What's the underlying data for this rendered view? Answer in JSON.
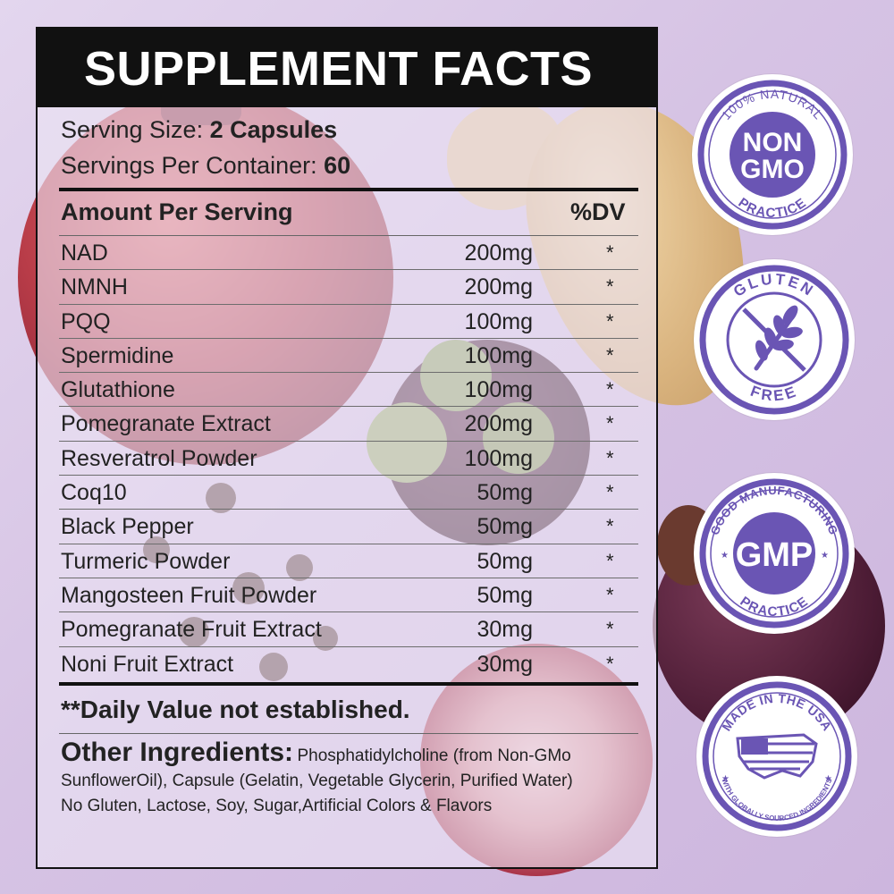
{
  "title": "SUPPLEMENT FACTS",
  "serving": {
    "size_label": "Serving Size:",
    "size_value": "2 Capsules",
    "per_container_label": "Servings Per Container:",
    "per_container_value": "60"
  },
  "table": {
    "amount_header": "Amount Per Serving",
    "dv_header": "%DV",
    "rows": [
      {
        "name": "NAD",
        "amount": "200mg",
        "dv": "*"
      },
      {
        "name": "NMNH",
        "amount": "200mg",
        "dv": "*"
      },
      {
        "name": "PQQ",
        "amount": "100mg",
        "dv": "*"
      },
      {
        "name": "Spermidine",
        "amount": "100mg",
        "dv": "*"
      },
      {
        "name": "Glutathione",
        "amount": "100mg",
        "dv": "*"
      },
      {
        "name": "Pomegranate Extract",
        "amount": "200mg",
        "dv": "*"
      },
      {
        "name": "Resveratrol Powder",
        "amount": "100mg",
        "dv": "*"
      },
      {
        "name": "Coq10",
        "amount": "50mg",
        "dv": "*"
      },
      {
        "name": "Black Pepper",
        "amount": "50mg",
        "dv": "*"
      },
      {
        "name": "Turmeric Powder",
        "amount": "50mg",
        "dv": "*"
      },
      {
        "name": "Mangosteen Fruit Powder",
        "amount": "50mg",
        "dv": "*"
      },
      {
        "name": "Pomegranate Fruit Extract",
        "amount": "30mg",
        "dv": "*"
      },
      {
        "name": "Noni Fruit Extract",
        "amount": "30mg",
        "dv": "*"
      }
    ]
  },
  "dv_note": "**Daily Value not established.",
  "other_ingredients": {
    "label": "Other Ingredients:",
    "text": "Phosphatidylcholine (from Non-GMo SunflowerOil), Capsule (Gelatin, Vegetable Glycerin, Purified Water)",
    "free_from": "No Gluten, Lactose, Soy, Sugar,Artificial Colors & Flavors"
  },
  "badges": [
    {
      "icon": "non-gmo-seal-icon",
      "top_text": "100% NATURAL",
      "main_line1": "NON",
      "main_line2": "GMO",
      "bottom_text": "PRACTICE"
    },
    {
      "icon": "gluten-free-seal-icon",
      "top_text": "GLUTEN",
      "bottom_text": "FREE"
    },
    {
      "icon": "gmp-seal-icon",
      "top_text": "GOOD MANUFACTURING",
      "main_line1": "GMP",
      "bottom_text": "PRACTICE"
    },
    {
      "icon": "made-in-usa-seal-icon",
      "top_text": "MADE IN THE USA",
      "bottom_text": "WITH GLOBALLY SOURCED INGREDIENTS"
    }
  ],
  "colors": {
    "badge_purple": "#6a55b4",
    "header_black": "#111111",
    "background_lilac": "#d9c9e6"
  }
}
